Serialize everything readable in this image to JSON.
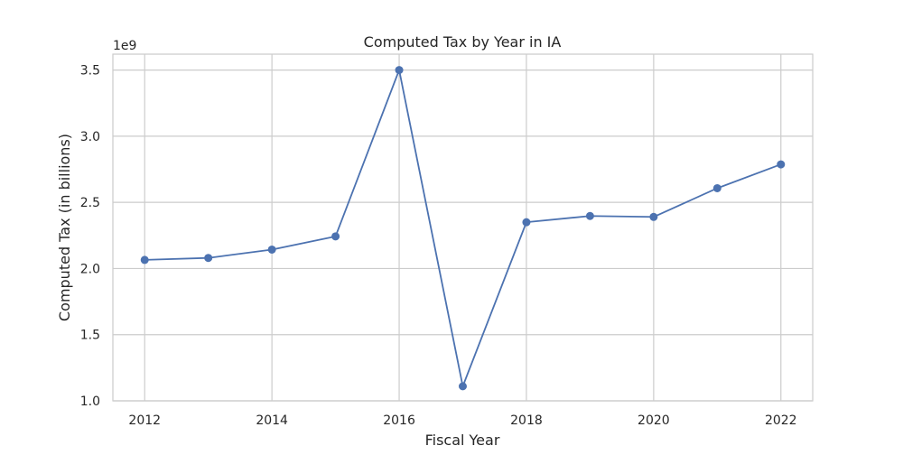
{
  "chart_data": {
    "type": "line",
    "title": "Computed Tax by Year in IA",
    "xlabel": "Fiscal Year",
    "ylabel": "Computed Tax (in billions)",
    "y_offset_label": "1e9",
    "x": [
      2012,
      2013,
      2014,
      2015,
      2016,
      2017,
      2018,
      2019,
      2020,
      2021,
      2022
    ],
    "series": [
      {
        "values": [
          2.065,
          2.08,
          2.143,
          2.243,
          3.5,
          1.11,
          2.35,
          2.397,
          2.39,
          2.607,
          2.787
        ]
      }
    ],
    "x_ticks": [
      2012,
      2014,
      2016,
      2018,
      2020,
      2022
    ],
    "x_tick_labels": [
      "2012",
      "2014",
      "2016",
      "2018",
      "2020",
      "2022"
    ],
    "y_ticks": [
      1.0,
      1.5,
      2.0,
      2.5,
      3.0,
      3.5
    ],
    "y_tick_labels": [
      "1.0",
      "1.5",
      "2.0",
      "2.5",
      "3.0",
      "3.5"
    ],
    "xlim": [
      2011.5,
      2022.5
    ],
    "ylim": [
      1.0,
      3.62
    ],
    "grid": true,
    "marker": "circle",
    "colors": {
      "line": "#4c72b0",
      "grid": "#cccccc",
      "spine": "#cccccc",
      "text": "#262626"
    }
  }
}
